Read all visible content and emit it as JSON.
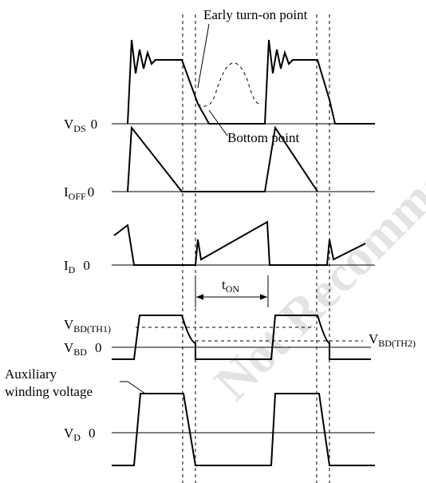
{
  "watermark": "Not Recommended",
  "annotations": {
    "early_turn_on": "Early turn-on point",
    "bottom_point": "Bottom point"
  },
  "signals": [
    {
      "name": {
        "main": "V",
        "sub": "DS"
      },
      "zero": "0"
    },
    {
      "name": {
        "main": "I",
        "sub": "OFF"
      },
      "zero": "0"
    },
    {
      "name": {
        "main": "I",
        "sub": "D"
      },
      "zero": "0"
    },
    {
      "name": {
        "main": "V",
        "sub": "BD"
      },
      "zero": "0"
    },
    {
      "name": {
        "main": "V",
        "sub": "D"
      },
      "zero": "0"
    }
  ],
  "thresholds": [
    {
      "main": "V",
      "sub": "BD(TH1)"
    },
    {
      "main": "V",
      "sub": "BD(TH2)"
    }
  ],
  "t_on": {
    "main": "t",
    "sub": "ON"
  },
  "aux_label": [
    "Auxiliary",
    "winding voltage"
  ]
}
